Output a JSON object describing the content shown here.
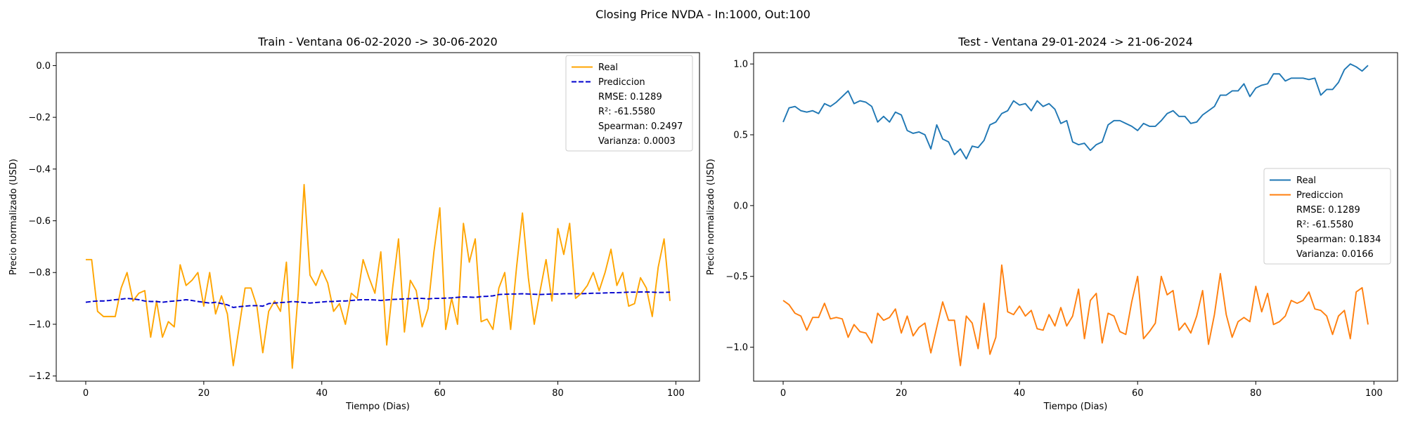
{
  "figure": {
    "title": "Closing Price NVDA - In:1000, Out:100"
  },
  "chart_data": [
    {
      "type": "line",
      "title": "Train - Ventana 06-02-2020 -> 30-06-2020",
      "xlabel": "Tiempo (Dias)",
      "ylabel": "Precio normalizado (USD)",
      "xlim": [
        -5,
        104
      ],
      "ylim": [
        -1.22,
        0.05
      ],
      "xticks": [
        0,
        20,
        40,
        60,
        80,
        100
      ],
      "xtick_labels": [
        "0",
        "20",
        "40",
        "60",
        "80",
        "100"
      ],
      "yticks": [
        0.0,
        -0.2,
        -0.4,
        -0.6,
        -0.8,
        -1.0,
        -1.2
      ],
      "ytick_labels": [
        "0.0",
        "−0.2",
        "−0.4",
        "−0.6",
        "−0.8",
        "−1.0",
        "−1.2"
      ],
      "grid": false,
      "legend": {
        "position": "top-right",
        "items": [
          "Real",
          "Prediccion"
        ],
        "stats": [
          "RMSE: 0.1289",
          "R²: -61.5580",
          "Spearman: 0.2497",
          "Varianza: 0.0003"
        ]
      },
      "series": [
        {
          "name": "Real",
          "color": "#ffa500",
          "dash": "solid",
          "values": [
            -0.75,
            -0.75,
            -0.95,
            -0.97,
            -0.97,
            -0.97,
            -0.86,
            -0.8,
            -0.91,
            -0.88,
            -0.87,
            -1.05,
            -0.91,
            -1.05,
            -0.99,
            -1.01,
            -0.77,
            -0.85,
            -0.83,
            -0.8,
            -0.93,
            -0.8,
            -0.96,
            -0.89,
            -0.96,
            -1.16,
            -1.01,
            -0.86,
            -0.86,
            -0.93,
            -1.11,
            -0.95,
            -0.91,
            -0.95,
            -0.76,
            -1.17,
            -0.88,
            -0.46,
            -0.81,
            -0.85,
            -0.79,
            -0.84,
            -0.95,
            -0.92,
            -1.0,
            -0.88,
            -0.9,
            -0.75,
            -0.82,
            -0.88,
            -0.72,
            -1.08,
            -0.86,
            -0.67,
            -1.03,
            -0.83,
            -0.87,
            -1.01,
            -0.94,
            -0.72,
            -0.55,
            -1.02,
            -0.9,
            -1.0,
            -0.61,
            -0.76,
            -0.67,
            -0.99,
            -0.98,
            -1.02,
            -0.86,
            -0.8,
            -1.02,
            -0.78,
            -0.57,
            -0.82,
            -1.0,
            -0.87,
            -0.75,
            -0.91,
            -0.63,
            -0.73,
            -0.61,
            -0.9,
            -0.88,
            -0.85,
            -0.8,
            -0.87,
            -0.8,
            -0.71,
            -0.85,
            -0.8,
            -0.93,
            -0.92,
            -0.82,
            -0.86,
            -0.97,
            -0.78,
            -0.67,
            -0.91
          ]
        },
        {
          "name": "Prediccion",
          "color": "#0000cd",
          "dash": "dashed",
          "values": [
            -0.915,
            -0.912,
            -0.91,
            -0.91,
            -0.908,
            -0.905,
            -0.903,
            -0.9,
            -0.902,
            -0.905,
            -0.91,
            -0.912,
            -0.912,
            -0.915,
            -0.912,
            -0.91,
            -0.908,
            -0.905,
            -0.908,
            -0.912,
            -0.915,
            -0.918,
            -0.915,
            -0.92,
            -0.925,
            -0.935,
            -0.932,
            -0.93,
            -0.928,
            -0.928,
            -0.93,
            -0.92,
            -0.918,
            -0.916,
            -0.915,
            -0.912,
            -0.914,
            -0.916,
            -0.918,
            -0.916,
            -0.914,
            -0.912,
            -0.912,
            -0.91,
            -0.91,
            -0.908,
            -0.906,
            -0.905,
            -0.905,
            -0.906,
            -0.908,
            -0.906,
            -0.904,
            -0.903,
            -0.902,
            -0.901,
            -0.9,
            -0.9,
            -0.902,
            -0.9,
            -0.9,
            -0.899,
            -0.898,
            -0.896,
            -0.894,
            -0.895,
            -0.896,
            -0.893,
            -0.892,
            -0.89,
            -0.885,
            -0.884,
            -0.883,
            -0.883,
            -0.882,
            -0.883,
            -0.884,
            -0.885,
            -0.884,
            -0.883,
            -0.883,
            -0.882,
            -0.882,
            -0.882,
            -0.882,
            -0.881,
            -0.88,
            -0.88,
            -0.879,
            -0.878,
            -0.878,
            -0.877,
            -0.876,
            -0.876,
            -0.875,
            -0.875,
            -0.876,
            -0.877,
            -0.877,
            -0.876
          ]
        }
      ]
    },
    {
      "type": "line",
      "title": "Test - Ventana 29-01-2024 -> 21-06-2024",
      "xlabel": "Tiempo (Dias)",
      "ylabel": "Precio normalizado (USD)",
      "xlim": [
        -5,
        104
      ],
      "ylim": [
        -1.24,
        1.08
      ],
      "xticks": [
        0,
        20,
        40,
        60,
        80,
        100
      ],
      "xtick_labels": [
        "0",
        "20",
        "40",
        "60",
        "80",
        "100"
      ],
      "yticks": [
        1.0,
        0.5,
        0.0,
        -0.5,
        -1.0
      ],
      "ytick_labels": [
        "1.0",
        "0.5",
        "0.0",
        "−0.5",
        "−1.0"
      ],
      "grid": false,
      "legend": {
        "position": "center-right",
        "items": [
          "Real",
          "Prediccion"
        ],
        "stats": [
          "RMSE: 0.1289",
          "R²: -61.5580",
          "Spearman: 0.1834",
          "Varianza: 0.0166"
        ]
      },
      "series": [
        {
          "name": "Real",
          "color": "#1f77b4",
          "dash": "solid",
          "values": [
            0.59,
            0.69,
            0.7,
            0.67,
            0.66,
            0.67,
            0.65,
            0.72,
            0.7,
            0.73,
            0.77,
            0.81,
            0.72,
            0.74,
            0.73,
            0.7,
            0.59,
            0.63,
            0.59,
            0.66,
            0.64,
            0.53,
            0.51,
            0.52,
            0.5,
            0.4,
            0.57,
            0.47,
            0.45,
            0.36,
            0.4,
            0.33,
            0.42,
            0.41,
            0.46,
            0.57,
            0.59,
            0.65,
            0.67,
            0.74,
            0.71,
            0.72,
            0.67,
            0.74,
            0.7,
            0.72,
            0.68,
            0.58,
            0.6,
            0.45,
            0.43,
            0.44,
            0.39,
            0.43,
            0.45,
            0.57,
            0.6,
            0.6,
            0.58,
            0.56,
            0.53,
            0.58,
            0.56,
            0.56,
            0.6,
            0.65,
            0.67,
            0.63,
            0.63,
            0.58,
            0.59,
            0.64,
            0.67,
            0.7,
            0.78,
            0.78,
            0.81,
            0.81,
            0.86,
            0.77,
            0.83,
            0.85,
            0.86,
            0.93,
            0.93,
            0.88,
            0.9,
            0.9,
            0.9,
            0.89,
            0.9,
            0.78,
            0.82,
            0.82,
            0.87,
            0.96,
            1.0,
            0.98,
            0.95,
            0.99
          ]
        },
        {
          "name": "Prediccion",
          "color": "#ff7f0e",
          "dash": "solid",
          "values": [
            -0.67,
            -0.7,
            -0.76,
            -0.78,
            -0.88,
            -0.79,
            -0.79,
            -0.69,
            -0.8,
            -0.79,
            -0.8,
            -0.93,
            -0.84,
            -0.89,
            -0.9,
            -0.97,
            -0.76,
            -0.81,
            -0.79,
            -0.73,
            -0.9,
            -0.78,
            -0.92,
            -0.86,
            -0.83,
            -1.04,
            -0.86,
            -0.68,
            -0.81,
            -0.81,
            -1.13,
            -0.78,
            -0.83,
            -1.01,
            -0.69,
            -1.05,
            -0.93,
            -0.42,
            -0.75,
            -0.77,
            -0.71,
            -0.78,
            -0.74,
            -0.87,
            -0.88,
            -0.77,
            -0.85,
            -0.72,
            -0.85,
            -0.78,
            -0.59,
            -0.94,
            -0.67,
            -0.62,
            -0.97,
            -0.76,
            -0.78,
            -0.89,
            -0.91,
            -0.68,
            -0.5,
            -0.94,
            -0.89,
            -0.83,
            -0.5,
            -0.63,
            -0.6,
            -0.88,
            -0.83,
            -0.9,
            -0.78,
            -0.6,
            -0.98,
            -0.77,
            -0.48,
            -0.77,
            -0.93,
            -0.82,
            -0.79,
            -0.82,
            -0.57,
            -0.75,
            -0.62,
            -0.84,
            -0.82,
            -0.78,
            -0.67,
            -0.69,
            -0.67,
            -0.61,
            -0.73,
            -0.74,
            -0.78,
            -0.91,
            -0.78,
            -0.74,
            -0.94,
            -0.61,
            -0.58,
            -0.84
          ]
        }
      ]
    }
  ]
}
